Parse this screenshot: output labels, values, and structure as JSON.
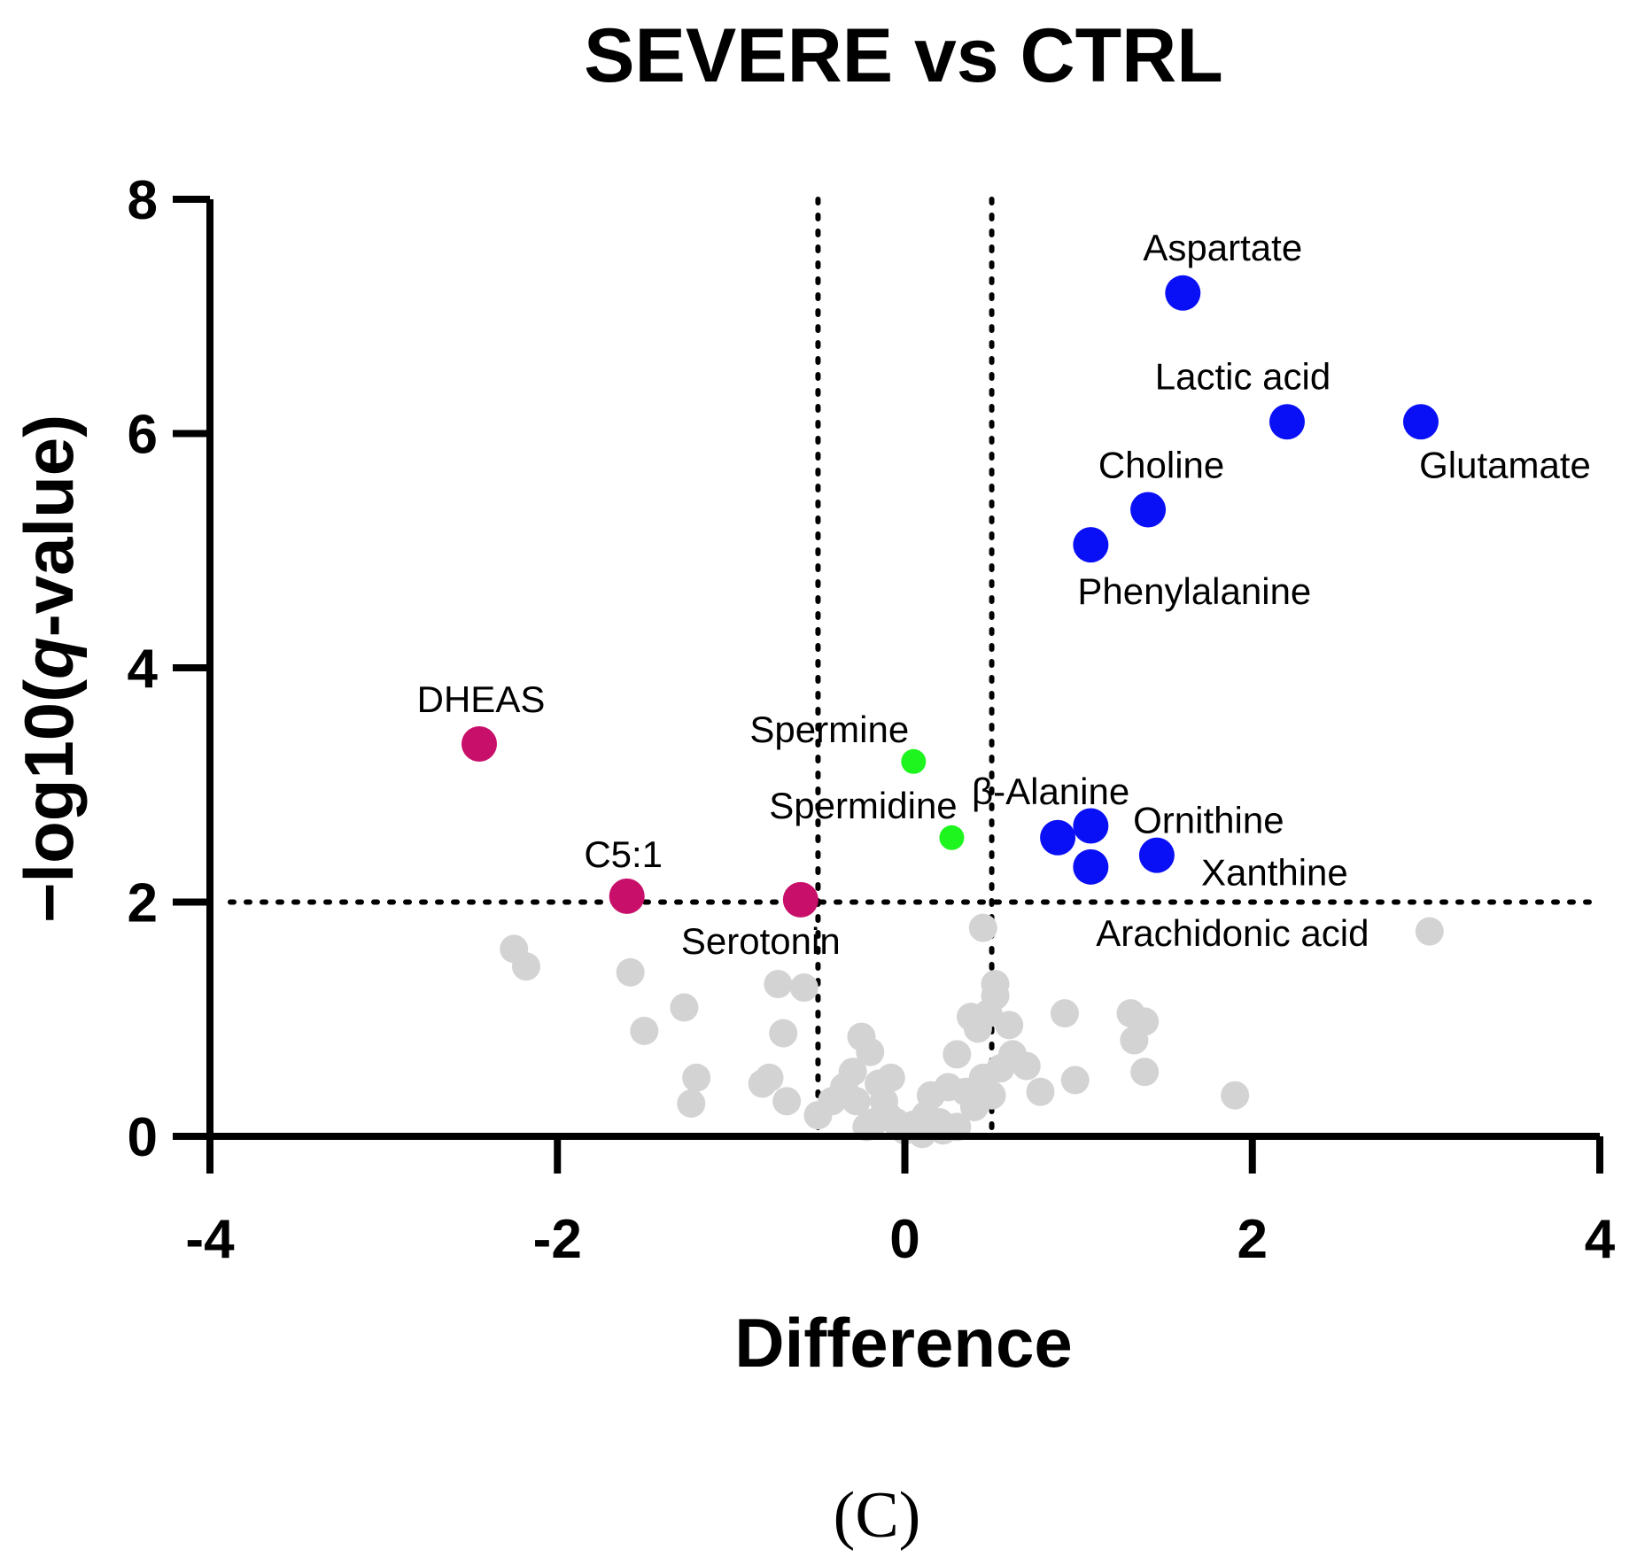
{
  "chart_data": {
    "type": "scatter",
    "title": "SEVERE vs CTRL",
    "xlabel": "Difference",
    "ylabel_prefix": "−log10(",
    "ylabel_italic": "q",
    "ylabel_suffix": "-value)",
    "xlim": [
      -4,
      4
    ],
    "ylim": [
      0,
      8
    ],
    "xticks": [
      "-4",
      "-2",
      "0",
      "2",
      "4"
    ],
    "yticks": [
      "0",
      "2",
      "4",
      "6",
      "8"
    ],
    "grid": false,
    "thresholds": {
      "x": [
        -0.5,
        0.5
      ],
      "y": 2
    },
    "panel_label": "(C)",
    "colors": {
      "up": "#0a10f5",
      "down": "#c8106a",
      "mid": "#1ef51e",
      "ns": "#d3d3d3"
    },
    "labeled_points": [
      {
        "name": "Aspartate",
        "x": 1.6,
        "y": 7.2,
        "group": "up"
      },
      {
        "name": "Lactic acid",
        "x": 2.2,
        "y": 6.1,
        "group": "up"
      },
      {
        "name": "Glutamate",
        "x": 2.97,
        "y": 6.1,
        "group": "up"
      },
      {
        "name": "Choline",
        "x": 1.4,
        "y": 5.35,
        "group": "up"
      },
      {
        "name": "Phenylalanine",
        "x": 1.07,
        "y": 5.05,
        "group": "up"
      },
      {
        "name": "β-Alanine",
        "x": 0.88,
        "y": 2.55,
        "group": "up"
      },
      {
        "name": "Ornithine",
        "x": 1.07,
        "y": 2.65,
        "group": "up"
      },
      {
        "name": "Xanthine",
        "x": 1.45,
        "y": 2.4,
        "group": "up"
      },
      {
        "name": "Arachidonic acid",
        "x": 1.07,
        "y": 2.3,
        "group": "up"
      },
      {
        "name": "DHEAS",
        "x": -2.45,
        "y": 3.35,
        "group": "down"
      },
      {
        "name": "C5:1",
        "x": -1.6,
        "y": 2.05,
        "group": "down"
      },
      {
        "name": "Serotonin",
        "x": -0.6,
        "y": 2.02,
        "group": "down"
      },
      {
        "name": "Spermine",
        "x": 0.05,
        "y": 3.2,
        "group": "mid"
      },
      {
        "name": "Spermidine",
        "x": 0.27,
        "y": 2.55,
        "group": "mid"
      }
    ],
    "ns_points": [
      [
        3.02,
        1.75
      ],
      [
        -2.25,
        1.6
      ],
      [
        -2.18,
        1.45
      ],
      [
        -1.58,
        1.4
      ],
      [
        -1.27,
        1.1
      ],
      [
        -1.5,
        0.9
      ],
      [
        -1.2,
        0.5
      ],
      [
        -1.23,
        0.28
      ],
      [
        -0.73,
        1.3
      ],
      [
        -0.7,
        0.88
      ],
      [
        -0.58,
        1.27
      ],
      [
        -0.78,
        0.5
      ],
      [
        -0.82,
        0.45
      ],
      [
        -0.68,
        0.3
      ],
      [
        -0.5,
        0.18
      ],
      [
        -0.25,
        0.85
      ],
      [
        -0.2,
        0.72
      ],
      [
        -0.3,
        0.55
      ],
      [
        -0.35,
        0.42
      ],
      [
        -0.28,
        0.3
      ],
      [
        -0.42,
        0.3
      ],
      [
        -0.15,
        0.45
      ],
      [
        -0.12,
        0.3
      ],
      [
        -0.1,
        0.18
      ],
      [
        -0.05,
        0.12
      ],
      [
        0.0,
        0.05
      ],
      [
        0.05,
        0.1
      ],
      [
        0.1,
        0.02
      ],
      [
        -0.18,
        0.12
      ],
      [
        -0.22,
        0.08
      ],
      [
        0.12,
        0.18
      ],
      [
        0.2,
        0.12
      ],
      [
        0.3,
        0.08
      ],
      [
        0.22,
        0.05
      ],
      [
        0.4,
        0.25
      ],
      [
        0.35,
        0.38
      ],
      [
        0.25,
        0.42
      ],
      [
        0.45,
        0.5
      ],
      [
        0.5,
        0.35
      ],
      [
        0.55,
        0.58
      ],
      [
        0.42,
        0.92
      ],
      [
        0.38,
        1.02
      ],
      [
        0.48,
        1.05
      ],
      [
        0.52,
        1.2
      ],
      [
        0.52,
        1.3
      ],
      [
        0.6,
        0.95
      ],
      [
        0.62,
        0.7
      ],
      [
        0.7,
        0.6
      ],
      [
        0.78,
        0.38
      ],
      [
        0.45,
        1.78
      ],
      [
        0.92,
        1.05
      ],
      [
        0.98,
        0.48
      ],
      [
        1.3,
        1.05
      ],
      [
        1.38,
        0.98
      ],
      [
        1.32,
        0.82
      ],
      [
        1.38,
        0.55
      ],
      [
        1.9,
        0.35
      ],
      [
        0.3,
        0.7
      ],
      [
        0.15,
        0.35
      ],
      [
        -0.08,
        0.5
      ]
    ]
  }
}
